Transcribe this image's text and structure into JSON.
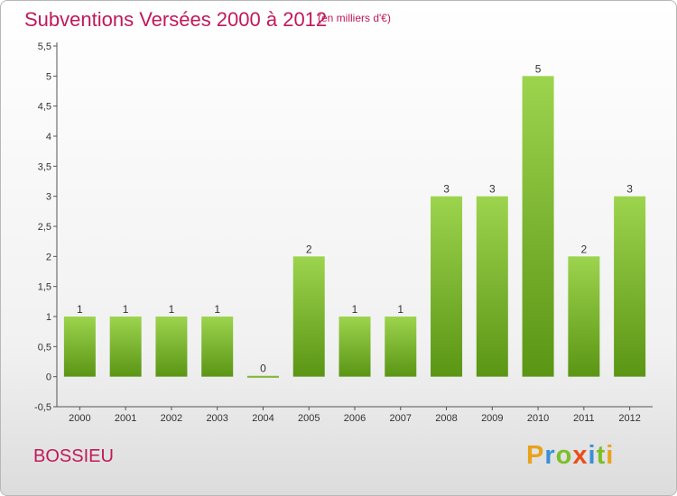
{
  "title": "Subventions Versées 2000 à 2012",
  "subtitle": "(en milliers d'€)",
  "commune": "BOSSIEU",
  "logo": {
    "letters": [
      "P",
      "r",
      "o",
      "x",
      "i",
      "t",
      "i"
    ],
    "colors": [
      "#e8a21c",
      "#3a8fd6",
      "#7cbf2a",
      "#e94e1b",
      "#3a8fd6",
      "#7cbf2a",
      "#e8a21c"
    ]
  },
  "colors": {
    "bar_top": "#9dd44e",
    "bar_bottom": "#5a9514",
    "title": "#c2185b"
  },
  "chart_data": {
    "type": "bar",
    "title": "Subventions Versées 2000 à 2012",
    "xlabel": "",
    "ylabel": "",
    "categories": [
      "2000",
      "2001",
      "2002",
      "2003",
      "2004",
      "2005",
      "2006",
      "2007",
      "2008",
      "2009",
      "2010",
      "2011",
      "2012"
    ],
    "values": [
      1,
      1,
      1,
      1,
      0,
      2,
      1,
      1,
      3,
      3,
      5,
      2,
      3
    ],
    "data_labels": [
      "1",
      "1",
      "1",
      "1",
      "0",
      "2",
      "1",
      "1",
      "3",
      "3",
      "5",
      "2",
      "3"
    ],
    "ylim": [
      -0.5,
      5.5
    ],
    "yticks": [
      -0.5,
      0,
      0.5,
      1,
      1.5,
      2,
      2.5,
      3,
      3.5,
      4,
      4.5,
      5,
      5.5
    ],
    "ytick_labels": [
      "-0,5",
      "0",
      "0,5",
      "1",
      "1,5",
      "2",
      "2,5",
      "3",
      "3,5",
      "4",
      "4,5",
      "5",
      "5,5"
    ],
    "grid": false,
    "legend": "none"
  }
}
